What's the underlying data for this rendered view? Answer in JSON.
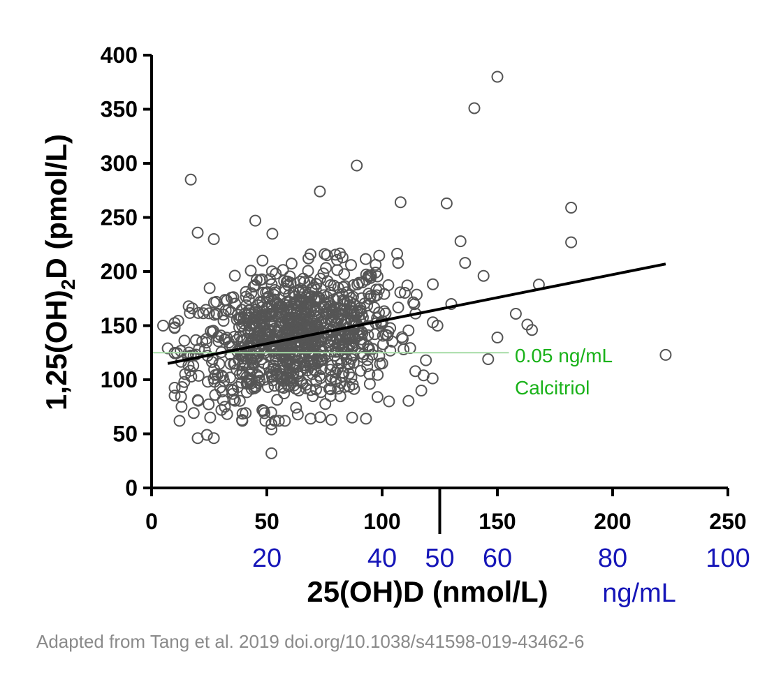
{
  "colors": {
    "marker_stroke": "#555555",
    "regression_line": "#000000",
    "reference_line": "#a6dca6",
    "reference_text": "#1ab21a",
    "secondary_axis_text": "#1515b8",
    "credit_text": "#8a8a8a"
  },
  "credit": "Adapted from Tang et al. 2019  doi.org/10.1038/s41598-019-43462-6",
  "chart_data": {
    "type": "scatter",
    "title": "",
    "xlabel": "25(OH)D (nmol/L)",
    "ylabel_parts": [
      "1,25(OH)",
      "2",
      "D (pmol/L)"
    ],
    "xlim": [
      0,
      250
    ],
    "ylim": [
      0,
      400
    ],
    "x_ticks": [
      "0",
      "50",
      "100",
      "150",
      "200",
      "250"
    ],
    "y_ticks": [
      "0",
      "50",
      "100",
      "150",
      "200",
      "250",
      "300",
      "350",
      "400"
    ],
    "grid": false,
    "secondary_x_axis": {
      "unit_label": "ng/mL",
      "ticks": [
        {
          "label": "20",
          "nmol": 50
        },
        {
          "label": "40",
          "nmol": 100
        },
        {
          "label": "50",
          "nmol": 125
        },
        {
          "label": "60",
          "nmol": 150
        },
        {
          "label": "80",
          "nmol": 200
        },
        {
          "label": "100",
          "nmol": 250
        }
      ],
      "marker_at_nmol": 125
    },
    "reference_line": {
      "y": 125,
      "x_range": [
        0,
        155
      ],
      "label_lines": [
        "0.05 ng/mL",
        "Calcitriol"
      ]
    },
    "regression": {
      "x": [
        7,
        223
      ],
      "y": [
        115,
        207
      ]
    },
    "highlighted_points": [
      {
        "x": 150,
        "y": 380
      },
      {
        "x": 140,
        "y": 351
      },
      {
        "x": 17,
        "y": 285
      },
      {
        "x": 89,
        "y": 298
      },
      {
        "x": 73,
        "y": 274
      },
      {
        "x": 128,
        "y": 263
      },
      {
        "x": 108,
        "y": 264
      },
      {
        "x": 182,
        "y": 259
      },
      {
        "x": 182,
        "y": 227
      },
      {
        "x": 134,
        "y": 228
      },
      {
        "x": 45,
        "y": 247
      },
      {
        "x": 20,
        "y": 236
      },
      {
        "x": 27,
        "y": 230
      },
      {
        "x": 5,
        "y": 150
      },
      {
        "x": 7,
        "y": 129
      },
      {
        "x": 223,
        "y": 123
      },
      {
        "x": 163,
        "y": 151
      },
      {
        "x": 165,
        "y": 146
      },
      {
        "x": 158,
        "y": 161
      },
      {
        "x": 168,
        "y": 188
      },
      {
        "x": 144,
        "y": 196
      },
      {
        "x": 136,
        "y": 208
      },
      {
        "x": 150,
        "y": 139
      },
      {
        "x": 146,
        "y": 119
      },
      {
        "x": 52,
        "y": 32
      },
      {
        "x": 20,
        "y": 46
      },
      {
        "x": 24,
        "y": 49
      },
      {
        "x": 27,
        "y": 46
      },
      {
        "x": 52,
        "y": 59
      },
      {
        "x": 52,
        "y": 54
      },
      {
        "x": 69,
        "y": 64
      },
      {
        "x": 78,
        "y": 63
      },
      {
        "x": 87,
        "y": 65
      },
      {
        "x": 93,
        "y": 64
      },
      {
        "x": 13,
        "y": 75
      },
      {
        "x": 118,
        "y": 104
      },
      {
        "x": 117,
        "y": 90
      },
      {
        "x": 119,
        "y": 118
      },
      {
        "x": 124,
        "y": 150
      },
      {
        "x": 130,
        "y": 170
      },
      {
        "x": 98,
        "y": 84
      },
      {
        "x": 103,
        "y": 80
      }
    ],
    "cluster": {
      "description": "dense cloud of ~1000 open circles",
      "x_mean": 62,
      "x_sd": 22,
      "y_mean": 140,
      "y_sd": 30,
      "count": 950
    }
  }
}
